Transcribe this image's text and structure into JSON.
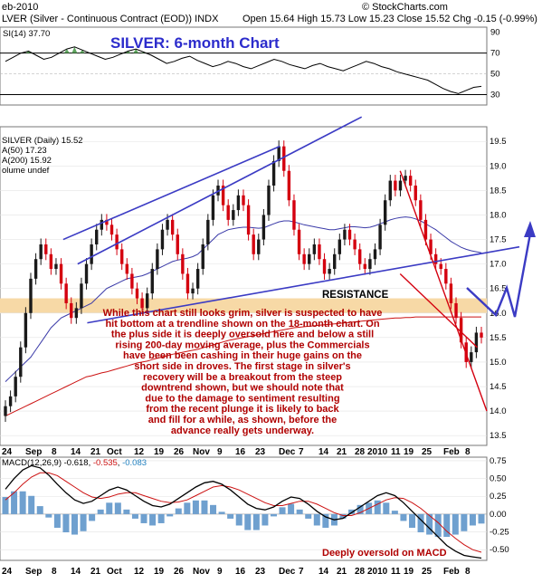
{
  "header": {
    "symbol_line": "LVER (Silver - Continuous Contract (EOD)) INDX",
    "date": "eb-2010",
    "quote": "Open 15.64 High 15.73 Low 15.23 Close 15.52 Chg -0.15 (-0.99%)",
    "watermark": "© StockCharts.com"
  },
  "rsi_label": "SI(14) 37.70",
  "main_title": "SILVER: 6-month Chart",
  "price_legend": [
    "SILVER (Daily) 15.52",
    "A(50) 17.23",
    "A(200) 15.92",
    "olume undef"
  ],
  "resistance_label": "RESISTANCE",
  "commentary": [
    "While this chart still looks grim, silver is suspected to have",
    "hit bottom at a trendline shown on the 18-month chart. On",
    "the plus side it is deeply oversold here and below a still",
    "rising 200-day moving average, plus the Commercials",
    "have been been cashing in their huge gains on the",
    "short side in droves. The first stage in silver's",
    "recovery will be a breakout from the steep",
    "downtrend shown, but we should note that",
    "due to the damage to sentiment resulting",
    "from the recent plunge it is likely to back",
    "and fill for a while, as shown, before the",
    "advance really gets underway."
  ],
  "macd_label": {
    "name": "MACD(12,26,9)",
    "v1": "-0.618",
    "v2": "-0.535",
    "v3": "-0.083"
  },
  "macd_note": "Deeply oversold on MACD",
  "x_ticks": [
    "24",
    "Sep",
    "8",
    "14",
    "21",
    "Oct",
    "12",
    "19",
    "26",
    "Nov",
    "9",
    "16",
    "23",
    "Dec",
    "7",
    "14",
    "21",
    "28",
    "2010",
    "11",
    "19",
    "25",
    "Feb",
    "8"
  ],
  "colors": {
    "up": "#1a1a1a",
    "down": "#d4000f",
    "ma50": "#3a3aa8",
    "ma200": "#cc1111",
    "trend": "#3b3bc4",
    "resistance": "#f7d9a6",
    "annotation": "#b00000"
  },
  "chart_data": [
    {
      "type": "line",
      "name": "RSI(14)",
      "ylim": [
        20,
        95
      ],
      "y_ticks": [
        90,
        70,
        50,
        30
      ],
      "values": [
        62,
        66,
        70,
        72,
        68,
        64,
        66,
        70,
        74,
        76,
        73,
        70,
        67,
        64,
        66,
        69,
        72,
        74,
        71,
        68,
        64,
        60,
        62,
        65,
        67,
        63,
        60,
        57,
        59,
        62,
        60,
        57,
        55,
        58,
        61,
        64,
        62,
        59,
        57,
        55,
        58,
        60,
        57,
        55,
        53,
        56,
        59,
        62,
        60,
        57,
        55,
        52,
        50,
        48,
        46,
        44,
        40,
        36,
        33,
        31,
        34,
        37,
        38
      ],
      "reference_lines": [
        70,
        30
      ]
    },
    {
      "type": "candlestick",
      "name": "SILVER (Daily)",
      "ylim": [
        13.3,
        19.8
      ],
      "y_ticks": [
        19.5,
        19.0,
        18.5,
        18.0,
        17.5,
        17.0,
        16.5,
        16.0,
        15.5,
        15.0,
        14.5,
        14.0,
        13.5
      ],
      "close": [
        14.1,
        14.3,
        14.7,
        15.3,
        16.0,
        16.7,
        17.1,
        17.4,
        17.2,
        16.9,
        17.0,
        16.6,
        16.2,
        15.9,
        16.1,
        16.6,
        17.0,
        17.4,
        17.7,
        17.9,
        17.8,
        17.6,
        17.3,
        17.0,
        16.8,
        16.5,
        16.3,
        16.1,
        16.4,
        16.9,
        17.3,
        17.7,
        17.9,
        17.6,
        17.2,
        16.8,
        16.4,
        16.5,
        16.9,
        17.4,
        17.9,
        18.4,
        18.6,
        18.2,
        17.9,
        18.1,
        18.4,
        18.2,
        17.6,
        17.2,
        17.5,
        18.0,
        18.6,
        19.1,
        19.4,
        18.9,
        18.3,
        17.7,
        17.2,
        17.0,
        17.2,
        17.4,
        17.1,
        16.8,
        16.9,
        17.2,
        17.5,
        17.7,
        17.5,
        17.3,
        17.0,
        16.9,
        17.1,
        17.3,
        17.8,
        18.3,
        18.7,
        18.5,
        18.7,
        18.8,
        18.6,
        18.3,
        17.9,
        17.5,
        17.2,
        17.0,
        16.9,
        16.6,
        16.2,
        15.9,
        15.4,
        15.0,
        15.2,
        15.6,
        15.5
      ],
      "ma50": [
        14.6,
        14.7,
        14.8,
        14.9,
        15.0,
        15.1,
        15.25,
        15.4,
        15.55,
        15.7,
        15.8,
        15.9,
        15.95,
        16.0,
        16.05,
        16.1,
        16.15,
        16.2,
        16.3,
        16.4,
        16.5,
        16.55,
        16.6,
        16.65,
        16.7,
        16.72,
        16.74,
        16.76,
        16.8,
        16.85,
        16.9,
        16.95,
        17.0,
        17.05,
        17.08,
        17.1,
        17.12,
        17.15,
        17.2,
        17.3,
        17.4,
        17.5,
        17.6,
        17.65,
        17.7,
        17.72,
        17.74,
        17.75,
        17.75,
        17.74,
        17.73,
        17.74,
        17.78,
        17.82,
        17.86,
        17.88,
        17.88,
        17.86,
        17.83,
        17.8,
        17.78,
        17.76,
        17.74,
        17.72,
        17.7,
        17.7,
        17.72,
        17.74,
        17.76,
        17.76,
        17.75,
        17.74,
        17.75,
        17.78,
        17.82,
        17.86,
        17.9,
        17.93,
        17.95,
        17.96,
        17.95,
        17.92,
        17.88,
        17.82,
        17.76,
        17.7,
        17.62,
        17.54,
        17.46,
        17.4,
        17.34,
        17.3,
        17.27,
        17.25,
        17.23
      ],
      "ma200": [
        13.9,
        13.95,
        14.0,
        14.05,
        14.1,
        14.15,
        14.2,
        14.25,
        14.3,
        14.35,
        14.4,
        14.45,
        14.5,
        14.55,
        14.6,
        14.65,
        14.7,
        14.72,
        14.75,
        14.78,
        14.8,
        14.83,
        14.86,
        14.89,
        14.92,
        14.95,
        14.98,
        15.0,
        15.02,
        15.05,
        15.08,
        15.1,
        15.13,
        15.16,
        15.18,
        15.2,
        15.22,
        15.24,
        15.26,
        15.29,
        15.32,
        15.35,
        15.38,
        15.41,
        15.44,
        15.46,
        15.48,
        15.5,
        15.52,
        15.54,
        15.56,
        15.58,
        15.6,
        15.62,
        15.64,
        15.66,
        15.68,
        15.7,
        15.71,
        15.72,
        15.73,
        15.74,
        15.75,
        15.76,
        15.77,
        15.78,
        15.79,
        15.8,
        15.81,
        15.82,
        15.83,
        15.84,
        15.85,
        15.86,
        15.87,
        15.88,
        15.89,
        15.9,
        15.9,
        15.91,
        15.91,
        15.92,
        15.92,
        15.92,
        15.92,
        15.92,
        15.92,
        15.92,
        15.92,
        15.92,
        15.92,
        15.92,
        15.92,
        15.92,
        15.92
      ],
      "resistance_band": [
        16.0,
        16.3
      ],
      "trendlines": [
        {
          "from": [
            0.12,
            17.5
          ],
          "to": [
            0.57,
            19.4
          ]
        },
        {
          "from": [
            0.17,
            15.8
          ],
          "to": [
            1.0,
            17.35
          ]
        },
        {
          "from": [
            0.15,
            17.0
          ],
          "to": [
            0.74,
            20.0
          ]
        },
        {
          "from": [
            0.82,
            18.9
          ],
          "to": [
            1.0,
            14.0
          ]
        },
        {
          "from": [
            0.82,
            16.8
          ],
          "to": [
            0.98,
            15.3
          ]
        }
      ]
    },
    {
      "type": "line",
      "name": "MACD(12,26,9)",
      "ylim": [
        -0.65,
        0.8
      ],
      "y_ticks": [
        0.75,
        0.5,
        0.25,
        0.0,
        -0.25,
        -0.5
      ],
      "macd": [
        0.35,
        0.5,
        0.62,
        0.68,
        0.65,
        0.55,
        0.42,
        0.3,
        0.2,
        0.15,
        0.18,
        0.26,
        0.34,
        0.38,
        0.34,
        0.26,
        0.18,
        0.12,
        0.1,
        0.14,
        0.22,
        0.3,
        0.38,
        0.44,
        0.46,
        0.42,
        0.34,
        0.24,
        0.14,
        0.08,
        0.06,
        0.1,
        0.18,
        0.24,
        0.22,
        0.14,
        0.04,
        -0.04,
        -0.08,
        -0.06,
        0.02,
        0.1,
        0.18,
        0.26,
        0.3,
        0.26,
        0.16,
        0.04,
        -0.08,
        -0.2,
        -0.32,
        -0.44,
        -0.52,
        -0.58,
        -0.6,
        -0.618
      ],
      "signal": [
        0.2,
        0.3,
        0.42,
        0.52,
        0.58,
        0.58,
        0.54,
        0.46,
        0.38,
        0.3,
        0.24,
        0.22,
        0.24,
        0.28,
        0.3,
        0.3,
        0.26,
        0.22,
        0.18,
        0.16,
        0.17,
        0.2,
        0.26,
        0.32,
        0.38,
        0.4,
        0.38,
        0.34,
        0.28,
        0.22,
        0.16,
        0.12,
        0.12,
        0.15,
        0.18,
        0.18,
        0.14,
        0.08,
        0.02,
        -0.02,
        -0.02,
        0.02,
        0.08,
        0.14,
        0.2,
        0.23,
        0.22,
        0.16,
        0.08,
        -0.02,
        -0.12,
        -0.24,
        -0.34,
        -0.43,
        -0.5,
        -0.535
      ]
    }
  ]
}
